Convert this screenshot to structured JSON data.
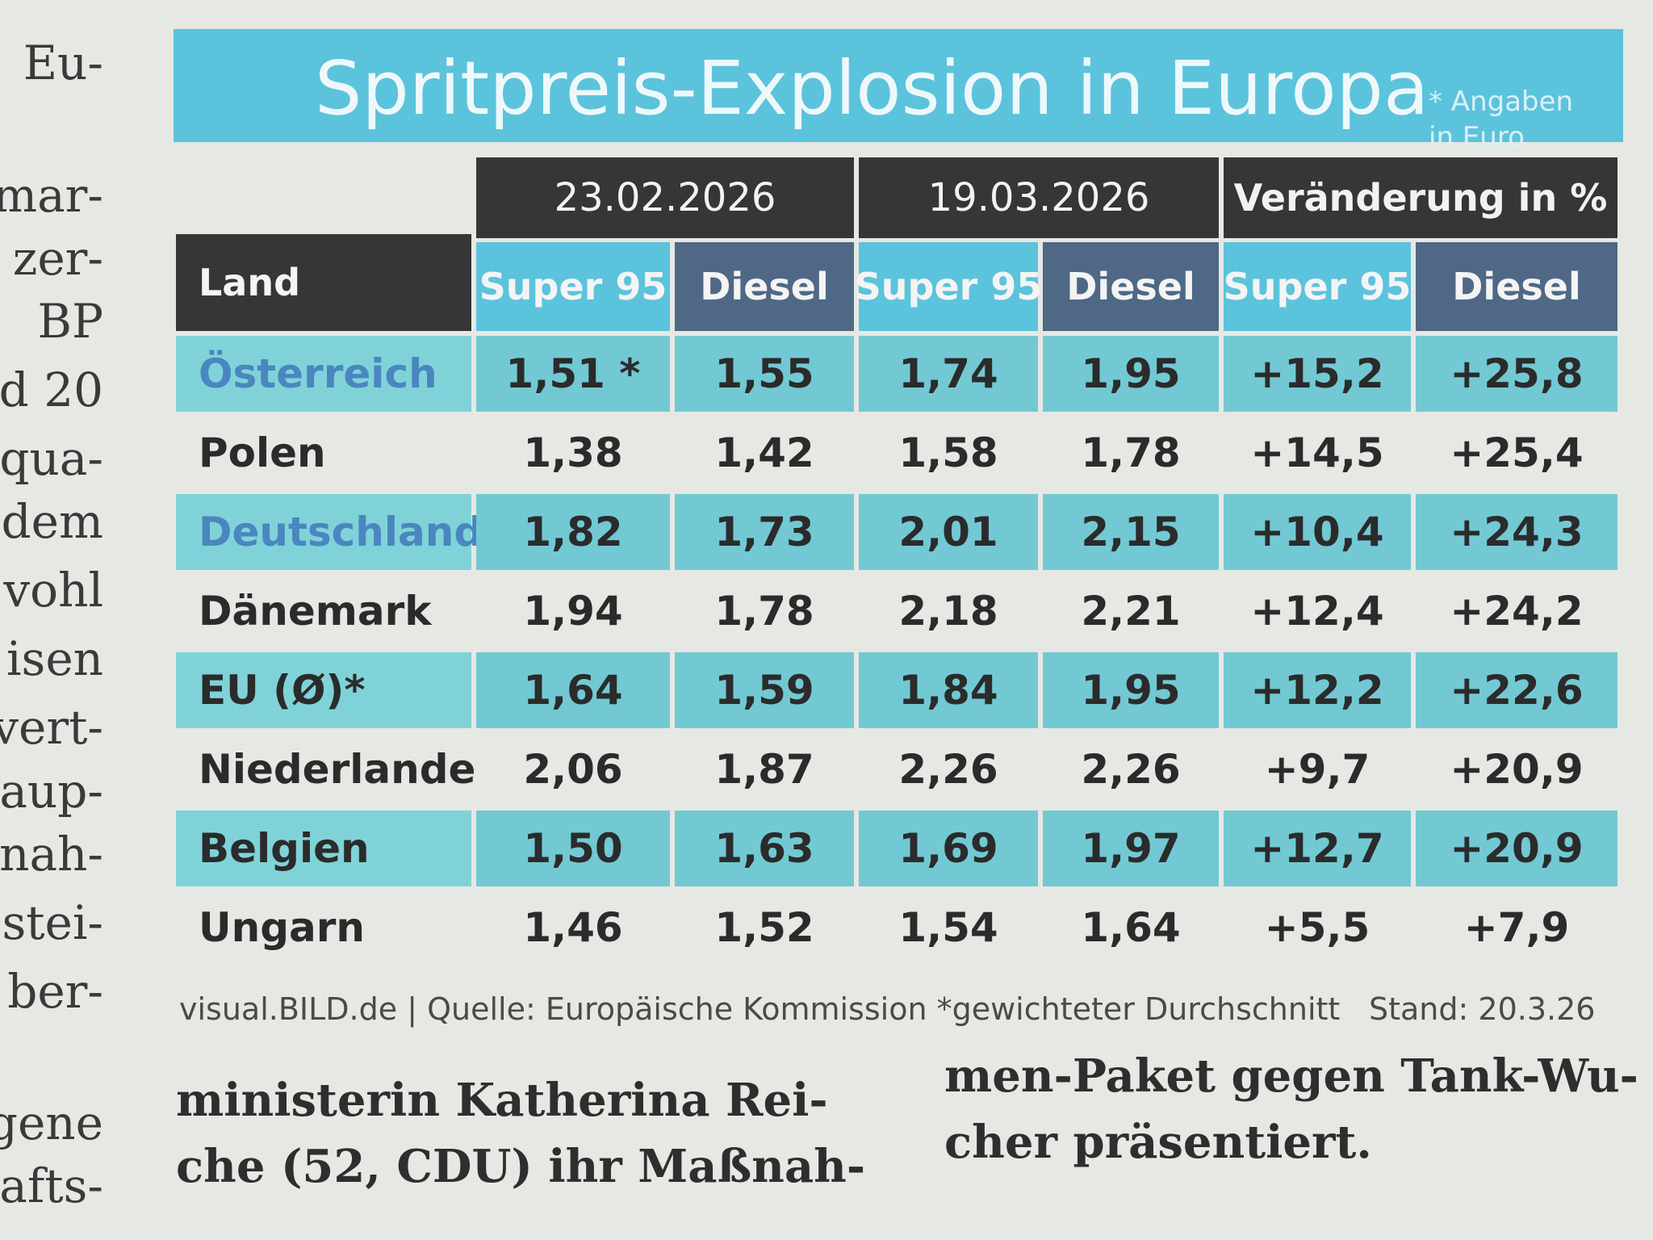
{
  "left_column": [
    "Eu-",
    "mar-",
    "zer-",
    "BP",
    "d 20",
    "qua-",
    "dem",
    "vohl",
    "isen",
    "vert-",
    "aup-",
    "nah-",
    "stei-",
    "ber-",
    "gene",
    "afts-"
  ],
  "table": {
    "title": "Spritpreis-Explosion in Europa",
    "note": [
      "* Angaben",
      "in Euro"
    ],
    "column_groups": [
      "23.02.2026",
      "19.03.2026",
      "Veränderung in %"
    ],
    "columns": [
      "Land",
      "Super 95",
      "Diesel",
      "Super 95",
      "Diesel",
      "Super 95",
      "Diesel"
    ],
    "rows": [
      [
        "Österreich",
        "1,51 *",
        "1,55",
        "1,74",
        "1,95",
        "+15,2",
        "+25,8"
      ],
      [
        "Polen",
        "1,38",
        "1,42",
        "1,58",
        "1,78",
        "+14,5",
        "+25,4"
      ],
      [
        "Deutschland",
        "1,82",
        "1,73",
        "2,01",
        "2,15",
        "+10,4",
        "+24,3"
      ],
      [
        "Dänemark",
        "1,94",
        "1,78",
        "2,18",
        "2,21",
        "+12,4",
        "+24,2"
      ],
      [
        "EU (Ø)*",
        "1,64",
        "1,59",
        "1,84",
        "1,95",
        "+12,2",
        "+22,6"
      ],
      [
        "Niederlande",
        "2,06",
        "1,87",
        "2,26",
        "2,26",
        "+9,7",
        "+20,9"
      ],
      [
        "Belgien",
        "1,50",
        "1,63",
        "1,69",
        "1,97",
        "+12,7",
        "+20,9"
      ],
      [
        "Ungarn",
        "1,46",
        "1,52",
        "1,54",
        "1,64",
        "+5,5",
        "+7,9"
      ]
    ]
  },
  "footer": {
    "source": "visual.BILD.de | Quelle: Europäische Kommission *gewichteter Durchschnitt",
    "date": "Stand: 20.3.26"
  },
  "article": {
    "columns": [
      [
        "ministerin Katherina Rei-",
        "che (52, CDU) ihr Maßnah-"
      ],
      [
        "men-Paket gegen Tank-Wu-",
        "cher präsentiert."
      ]
    ]
  }
}
